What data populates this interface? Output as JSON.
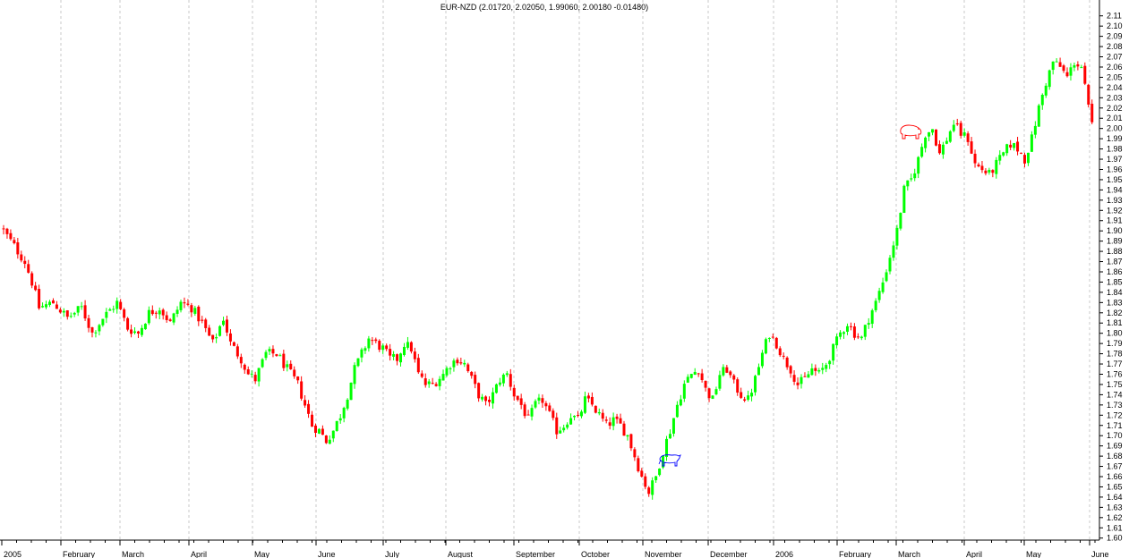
{
  "chart_data": {
    "type": "candlestick",
    "title": "EUR-NZD (2.01720, 2.02050, 1.99060, 2.00180 -0.01480)",
    "ylim": [
      1.6,
      2.115
    ],
    "y_ticks": [
      "2.11",
      "2.10",
      "2.09",
      "2.08",
      "2.07",
      "2.06",
      "2.05",
      "2.04",
      "2.03",
      "2.02",
      "2.01",
      "2.00",
      "1.99",
      "1.98",
      "1.97",
      "1.96",
      "1.95",
      "1.94",
      "1.93",
      "1.92",
      "1.91",
      "1.90",
      "1.89",
      "1.88",
      "1.87",
      "1.86",
      "1.85",
      "1.84",
      "1.83",
      "1.82",
      "1.81",
      "1.80",
      "1.79",
      "1.78",
      "1.77",
      "1.76",
      "1.75",
      "1.74",
      "1.73",
      "1.72",
      "1.71",
      "1.70",
      "1.69",
      "1.68",
      "1.67",
      "1.66",
      "1.65",
      "1.64",
      "1.63",
      "1.62",
      "1.61",
      "1.60"
    ],
    "x_labels": [
      "2005",
      "February",
      "March",
      "April",
      "May",
      "June",
      "July",
      "August",
      "September",
      "October",
      "November",
      "December",
      "2006",
      "February",
      "March",
      "April",
      "May",
      "June"
    ],
    "up_color": "#00ff00",
    "down_color": "#ff0000",
    "grid": true,
    "grid_style": "dashed vertical at month starts",
    "close_path": [
      [
        0,
        1.9
      ],
      [
        3,
        1.885
      ],
      [
        6,
        1.87
      ],
      [
        8,
        1.85
      ],
      [
        10,
        1.825
      ],
      [
        14,
        1.83
      ],
      [
        18,
        1.815
      ],
      [
        22,
        1.825
      ],
      [
        25,
        1.8
      ],
      [
        28,
        1.815
      ],
      [
        32,
        1.83
      ],
      [
        35,
        1.805
      ],
      [
        38,
        1.8
      ],
      [
        41,
        1.82
      ],
      [
        44,
        1.825
      ],
      [
        47,
        1.81
      ],
      [
        50,
        1.83
      ],
      [
        53,
        1.825
      ],
      [
        56,
        1.81
      ],
      [
        59,
        1.79
      ],
      [
        62,
        1.815
      ],
      [
        64,
        1.79
      ],
      [
        67,
        1.775
      ],
      [
        69,
        1.76
      ],
      [
        71,
        1.755
      ],
      [
        74,
        1.78
      ],
      [
        77,
        1.78
      ],
      [
        79,
        1.77
      ],
      [
        81,
        1.76
      ],
      [
        83,
        1.75
      ],
      [
        85,
        1.73
      ],
      [
        87,
        1.71
      ],
      [
        89,
        1.705
      ],
      [
        91,
        1.695
      ],
      [
        93,
        1.705
      ],
      [
        95,
        1.72
      ],
      [
        97,
        1.74
      ],
      [
        99,
        1.765
      ],
      [
        101,
        1.78
      ],
      [
        103,
        1.795
      ],
      [
        105,
        1.79
      ],
      [
        107,
        1.785
      ],
      [
        109,
        1.775
      ],
      [
        111,
        1.775
      ],
      [
        113,
        1.79
      ],
      [
        115,
        1.785
      ],
      [
        117,
        1.76
      ],
      [
        119,
        1.75
      ],
      [
        121,
        1.75
      ],
      [
        124,
        1.76
      ],
      [
        126,
        1.77
      ],
      [
        128,
        1.775
      ],
      [
        130,
        1.77
      ],
      [
        132,
        1.755
      ],
      [
        134,
        1.74
      ],
      [
        136,
        1.73
      ],
      [
        138,
        1.74
      ],
      [
        140,
        1.755
      ],
      [
        142,
        1.76
      ],
      [
        144,
        1.74
      ],
      [
        146,
        1.73
      ],
      [
        148,
        1.715
      ],
      [
        150,
        1.73
      ],
      [
        152,
        1.735
      ],
      [
        154,
        1.72
      ],
      [
        156,
        1.705
      ],
      [
        158,
        1.71
      ],
      [
        160,
        1.72
      ],
      [
        162,
        1.715
      ],
      [
        164,
        1.735
      ],
      [
        166,
        1.73
      ],
      [
        168,
        1.72
      ],
      [
        170,
        1.71
      ],
      [
        172,
        1.715
      ],
      [
        174,
        1.71
      ],
      [
        176,
        1.7
      ],
      [
        178,
        1.68
      ],
      [
        180,
        1.66
      ],
      [
        182,
        1.645
      ],
      [
        184,
        1.66
      ],
      [
        186,
        1.685
      ],
      [
        188,
        1.705
      ],
      [
        190,
        1.73
      ],
      [
        192,
        1.75
      ],
      [
        194,
        1.76
      ],
      [
        196,
        1.765
      ],
      [
        198,
        1.745
      ],
      [
        200,
        1.735
      ],
      [
        202,
        1.76
      ],
      [
        204,
        1.765
      ],
      [
        206,
        1.75
      ],
      [
        208,
        1.74
      ],
      [
        210,
        1.735
      ],
      [
        212,
        1.755
      ],
      [
        214,
        1.78
      ],
      [
        216,
        1.8
      ],
      [
        218,
        1.79
      ],
      [
        220,
        1.775
      ],
      [
        222,
        1.765
      ],
      [
        224,
        1.75
      ],
      [
        226,
        1.755
      ],
      [
        228,
        1.765
      ],
      [
        230,
        1.76
      ],
      [
        232,
        1.77
      ],
      [
        234,
        1.785
      ],
      [
        236,
        1.8
      ],
      [
        238,
        1.81
      ],
      [
        240,
        1.8
      ],
      [
        242,
        1.795
      ],
      [
        244,
        1.815
      ],
      [
        246,
        1.83
      ],
      [
        248,
        1.85
      ],
      [
        250,
        1.875
      ],
      [
        252,
        1.9
      ],
      [
        254,
        1.94
      ],
      [
        256,
        1.95
      ],
      [
        258,
        1.97
      ],
      [
        260,
        1.995
      ],
      [
        262,
        2.0
      ],
      [
        264,
        1.975
      ],
      [
        266,
        1.99
      ],
      [
        268,
        2.005
      ],
      [
        270,
        1.995
      ],
      [
        272,
        1.99
      ],
      [
        274,
        1.965
      ],
      [
        276,
        1.96
      ],
      [
        278,
        1.955
      ],
      [
        280,
        1.965
      ],
      [
        282,
        1.975
      ],
      [
        284,
        1.985
      ],
      [
        286,
        1.98
      ],
      [
        288,
        1.97
      ],
      [
        290,
        1.99
      ],
      [
        292,
        2.02
      ],
      [
        294,
        2.045
      ],
      [
        296,
        2.065
      ],
      [
        298,
        2.06
      ],
      [
        300,
        2.05
      ],
      [
        302,
        2.065
      ],
      [
        304,
        2.06
      ],
      [
        306,
        2.02
      ],
      [
        307,
        2.002
      ]
    ],
    "annotations": [
      {
        "type": "bull-icon",
        "color": "#0000ff",
        "position": "near December 2005 low"
      },
      {
        "type": "bear-icon",
        "color": "#ff0000",
        "position": "near March 2006 high"
      }
    ]
  }
}
